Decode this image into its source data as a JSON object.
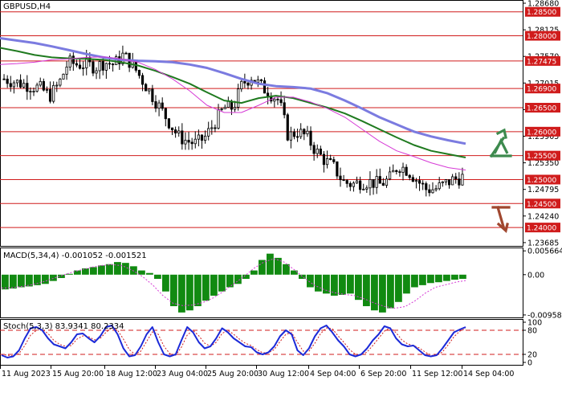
{
  "chart_data": [
    {
      "type": "candlestick",
      "title": "GBPUSD,H4",
      "ylim": [
        1.2365,
        1.2868
      ],
      "y_ticks": [
        "1.28680",
        "1.28125",
        "1.27570",
        "1.27015",
        "1.26460",
        "1.25905",
        "1.25350",
        "1.24795",
        "1.24240",
        "1.23685"
      ],
      "levels": [
        {
          "label": "1.28500",
          "value": 1.285
        },
        {
          "label": "1.28000",
          "value": 1.28
        },
        {
          "label": "1.27475",
          "value": 1.27475
        },
        {
          "label": "1.26900",
          "value": 1.269
        },
        {
          "label": "1.26500",
          "value": 1.265
        },
        {
          "label": "1.26000",
          "value": 1.26
        },
        {
          "label": "1.25500",
          "value": 1.255
        },
        {
          "label": "1.25000",
          "value": 1.25
        },
        {
          "label": "1.24500",
          "value": 1.245
        },
        {
          "label": "1.24000",
          "value": 1.24
        }
      ],
      "x_ticks": [
        "11 Aug 2023",
        "15 Aug 20:00",
        "18 Aug 12:00",
        "23 Aug 04:00",
        "25 Aug 20:00",
        "30 Aug 12:00",
        "4 Sep 04:00",
        "6 Sep 20:00",
        "11 Sep 12:00",
        "14 Sep 04:00"
      ],
      "close_path": [
        1.271,
        1.2705,
        1.27,
        1.2695,
        1.269,
        1.2675,
        1.27,
        1.2745,
        1.274,
        1.274,
        1.2735,
        1.2745,
        1.274,
        1.276,
        1.274,
        1.271,
        1.268,
        1.265,
        1.262,
        1.259,
        1.258,
        1.2575,
        1.259,
        1.262,
        1.265,
        1.265,
        1.27,
        1.2715,
        1.2695,
        1.268,
        1.2665,
        1.259,
        1.26,
        1.259,
        1.256,
        1.254,
        1.2525,
        1.2495,
        1.249,
        1.2495,
        1.2495,
        1.249,
        1.25,
        1.253,
        1.252,
        1.25,
        1.248,
        1.248,
        1.249,
        1.25,
        1.2505
      ],
      "ma_slow": [
        1.2795,
        1.279,
        1.2785,
        1.2778,
        1.277,
        1.2762,
        1.2755,
        1.275,
        1.2748,
        1.2747,
        1.2745,
        1.274,
        1.2733,
        1.2722,
        1.271,
        1.27,
        1.2695,
        1.2693,
        1.269,
        1.268,
        1.2665,
        1.2648,
        1.263,
        1.2615,
        1.26,
        1.259,
        1.2582,
        1.2575
      ],
      "ma_mid": [
        1.2775,
        1.2768,
        1.276,
        1.2755,
        1.2753,
        1.2752,
        1.275,
        1.2745,
        1.2738,
        1.2727,
        1.2714,
        1.27,
        1.2682,
        1.2665,
        1.266,
        1.267,
        1.2675,
        1.267,
        1.266,
        1.265,
        1.2638,
        1.2622,
        1.2605,
        1.2588,
        1.2572,
        1.256,
        1.2553,
        1.2546
      ],
      "ma_fast": [
        1.274,
        1.2742,
        1.2745,
        1.275,
        1.2752,
        1.2755,
        1.2756,
        1.2752,
        1.2745,
        1.273,
        1.271,
        1.2685,
        1.2655,
        1.264,
        1.264,
        1.2655,
        1.2672,
        1.2672,
        1.2662,
        1.2648,
        1.263,
        1.2605,
        1.258,
        1.256,
        1.2548,
        1.2535,
        1.2525,
        1.252
      ],
      "arrows": [
        {
          "dir": "up",
          "color": "#3d8a4e"
        },
        {
          "dir": "down",
          "color": "#a0472f"
        }
      ]
    },
    {
      "type": "bar",
      "title": "MACD(5,34,4) -0.001052 -0.001521",
      "y_ticks": [
        "0.005664",
        "0.00",
        "-0.009587"
      ],
      "ylim": [
        -0.0096,
        0.0057
      ],
      "values": [
        -0.0035,
        -0.0033,
        -0.003,
        -0.0028,
        -0.0025,
        -0.0022,
        -0.0015,
        -0.0008,
        0.0002,
        0.001,
        0.0015,
        0.0018,
        0.0022,
        0.0025,
        0.003,
        0.0028,
        0.002,
        0.001,
        0.0004,
        -0.001,
        -0.004,
        -0.0075,
        -0.009,
        -0.0085,
        -0.0075,
        -0.0062,
        -0.005,
        -0.004,
        -0.003,
        -0.0022,
        -0.001,
        0.001,
        0.0035,
        0.005,
        0.004,
        0.0025,
        0.001,
        -0.001,
        -0.003,
        -0.004,
        -0.0045,
        -0.005,
        -0.0048,
        -0.0045,
        -0.006,
        -0.0075,
        -0.0085,
        -0.009,
        -0.008,
        -0.0065,
        -0.0045,
        -0.003,
        -0.0025,
        -0.002,
        -0.0018,
        -0.0015,
        -0.0012,
        -0.001
      ],
      "signal": [
        -0.0032,
        -0.0031,
        -0.0028,
        -0.0024,
        -0.0018,
        -0.001,
        -0.0002,
        0.0006,
        0.0012,
        0.0018,
        0.0022,
        0.0024,
        0.0021,
        0.001,
        -0.0005,
        -0.0025,
        -0.005,
        -0.0068,
        -0.0074,
        -0.0072,
        -0.0066,
        -0.0055,
        -0.004,
        -0.0022,
        -0.0005,
        0.0015,
        0.003,
        0.0038,
        0.003,
        0.0012,
        -0.0008,
        -0.0025,
        -0.0036,
        -0.0043,
        -0.0047,
        -0.005,
        -0.0058,
        -0.0068,
        -0.0076,
        -0.008,
        -0.0076,
        -0.0062,
        -0.0044,
        -0.003,
        -0.0024,
        -0.0018,
        -0.0014
      ]
    },
    {
      "type": "line",
      "title": "Stoch(5,3,3) 83.9341 80.2334",
      "y_ticks": [
        "100",
        "80",
        "20",
        "0"
      ],
      "ylim": [
        0,
        100
      ],
      "levels": [
        80,
        20
      ],
      "main": [
        18,
        12,
        15,
        30,
        60,
        85,
        88,
        80,
        60,
        45,
        40,
        35,
        50,
        70,
        72,
        60,
        50,
        65,
        88,
        92,
        70,
        35,
        15,
        18,
        40,
        70,
        88,
        50,
        20,
        15,
        20,
        55,
        88,
        75,
        50,
        35,
        40,
        60,
        85,
        75,
        60,
        50,
        40,
        38,
        25,
        20,
        25,
        40,
        65,
        80,
        70,
        30,
        18,
        35,
        65,
        85,
        92,
        75,
        55,
        40,
        20,
        15,
        20,
        35,
        55,
        70,
        90,
        85,
        60,
        45,
        40,
        42,
        30,
        18,
        15,
        18,
        35,
        55,
        75,
        82,
        88
      ],
      "signal": [
        20,
        18,
        16,
        22,
        42,
        68,
        80,
        82,
        72,
        55,
        45,
        40,
        42,
        58,
        66,
        64,
        56,
        60,
        75,
        86,
        80,
        58,
        32,
        20,
        28,
        52,
        76,
        70,
        40,
        22,
        18,
        38,
        68,
        80,
        66,
        48,
        40,
        50,
        72,
        80,
        70,
        58,
        48,
        42,
        32,
        24,
        24,
        32,
        52,
        70,
        74,
        50,
        28,
        28,
        48,
        72,
        86,
        84,
        66,
        50,
        32,
        20,
        18,
        26,
        42,
        60,
        78,
        86,
        74,
        56,
        46,
        42,
        36,
        26,
        18,
        17,
        26,
        44,
        64,
        78,
        84
      ]
    }
  ]
}
